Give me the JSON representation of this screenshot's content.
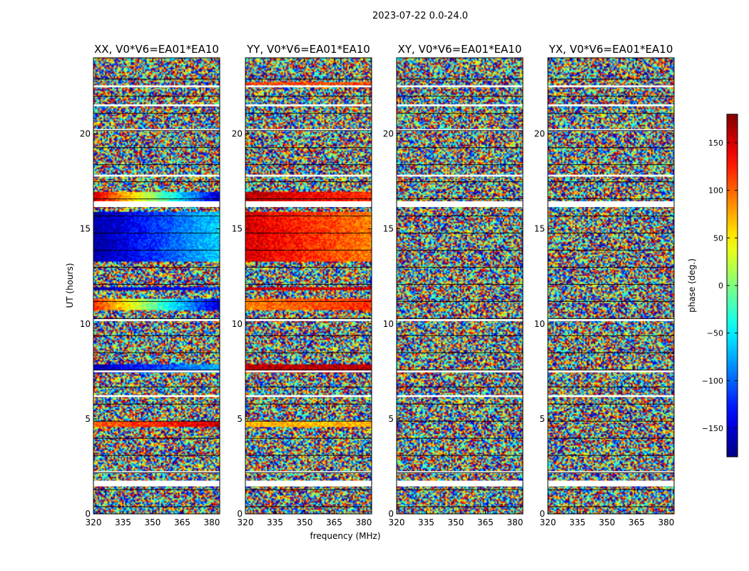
{
  "figure": {
    "suptitle": "2023-07-22 0.0-24.0",
    "xlabel": "frequency (MHz)",
    "ylabel": "UT (hours)",
    "colorbar_label": "phase (deg.)",
    "colorbar_ticks": [
      "150",
      "100",
      "50",
      "0",
      "−50",
      "−100",
      "−150"
    ],
    "x_ticks": [
      "320",
      "335",
      "350",
      "365",
      "380"
    ],
    "y_ticks": [
      "0",
      "5",
      "10",
      "15",
      "20"
    ]
  },
  "chart_data": [
    {
      "type": "heatmap",
      "title": "XX, V0*V6=EA01*EA10",
      "xlabel": "frequency (MHz)",
      "ylabel": "UT (hours)",
      "xlim": [
        320,
        384
      ],
      "ylim": [
        0,
        24
      ],
      "x_ticks": [
        320,
        335,
        350,
        365,
        380
      ],
      "y_ticks": [
        0,
        5,
        10,
        15,
        20
      ],
      "value_range": [
        -180,
        180
      ],
      "colormap": "jet",
      "flagged_bands": [
        [
          1.45,
          1.75
        ],
        [
          2.15,
          2.25
        ],
        [
          6.15,
          6.25
        ],
        [
          7.45,
          7.55
        ],
        [
          10.15,
          10.25
        ],
        [
          16.15,
          16.45
        ],
        [
          17.75,
          17.85
        ],
        [
          20.15,
          20.25
        ],
        [
          21.45,
          21.55
        ],
        [
          22.45,
          22.55
        ]
      ],
      "coherent_bands": [
        {
          "ut": [
            4.55,
            4.85
          ],
          "phase_start": 100,
          "phase_end": 150
        },
        {
          "ut": [
            7.45,
            7.85
          ],
          "phase_start": -160,
          "phase_end": -70
        },
        {
          "ut": [
            10.75,
            11.35
          ],
          "phase_start": 120,
          "phase_end": -150
        },
        {
          "ut": [
            11.75,
            11.95
          ],
          "phase_start": -160,
          "phase_end": -120
        },
        {
          "ut": [
            13.3,
            15.9
          ],
          "phase_start": -170,
          "phase_end": -60
        },
        {
          "ut": [
            16.45,
            16.95
          ],
          "phase_start": 150,
          "phase_end": -150
        }
      ]
    },
    {
      "type": "heatmap",
      "title": "YY, V0*V6=EA01*EA10",
      "xlabel": "frequency (MHz)",
      "ylabel": "UT (hours)",
      "xlim": [
        320,
        384
      ],
      "ylim": [
        0,
        24
      ],
      "x_ticks": [
        320,
        335,
        350,
        365,
        380
      ],
      "y_ticks": [
        0,
        5,
        10,
        15,
        20
      ],
      "value_range": [
        -180,
        180
      ],
      "colormap": "jet",
      "flagged_bands": [
        [
          1.45,
          1.75
        ],
        [
          2.15,
          2.25
        ],
        [
          6.15,
          6.25
        ],
        [
          7.45,
          7.55
        ],
        [
          10.15,
          10.25
        ],
        [
          16.15,
          16.45
        ],
        [
          17.75,
          17.85
        ],
        [
          20.15,
          20.25
        ],
        [
          21.45,
          21.55
        ],
        [
          22.45,
          22.55
        ]
      ],
      "coherent_bands": [
        {
          "ut": [
            4.55,
            4.85
          ],
          "phase_start": 70,
          "phase_end": 70
        },
        {
          "ut": [
            7.45,
            7.85
          ],
          "phase_start": 160,
          "phase_end": 160
        },
        {
          "ut": [
            10.75,
            11.35
          ],
          "phase_start": 90,
          "phase_end": 120
        },
        {
          "ut": [
            11.75,
            11.95
          ],
          "phase_start": 150,
          "phase_end": 150
        },
        {
          "ut": [
            13.3,
            15.9
          ],
          "phase_start": 150,
          "phase_end": 90
        },
        {
          "ut": [
            16.45,
            16.95
          ],
          "phase_start": 160,
          "phase_end": 120
        },
        {
          "ut": [
            22.55,
            22.75
          ],
          "phase_start": 110,
          "phase_end": 110
        }
      ]
    },
    {
      "type": "heatmap",
      "title": "XY, V0*V6=EA01*EA10",
      "xlabel": "frequency (MHz)",
      "ylabel": "UT (hours)",
      "xlim": [
        320,
        384
      ],
      "ylim": [
        0,
        24
      ],
      "x_ticks": [
        320,
        335,
        350,
        365,
        380
      ],
      "y_ticks": [
        0,
        5,
        10,
        15,
        20
      ],
      "value_range": [
        -180,
        180
      ],
      "colormap": "jet",
      "flagged_bands": [
        [
          1.45,
          1.75
        ],
        [
          2.15,
          2.25
        ],
        [
          6.15,
          6.25
        ],
        [
          7.45,
          7.55
        ],
        [
          10.15,
          10.25
        ],
        [
          16.15,
          16.45
        ],
        [
          17.75,
          17.85
        ],
        [
          20.15,
          20.25
        ],
        [
          21.45,
          21.55
        ],
        [
          22.45,
          22.55
        ]
      ],
      "coherent_bands": []
    },
    {
      "type": "heatmap",
      "title": "YX, V0*V6=EA01*EA10",
      "xlabel": "frequency (MHz)",
      "ylabel": "UT (hours)",
      "xlim": [
        320,
        384
      ],
      "ylim": [
        0,
        24
      ],
      "x_ticks": [
        320,
        335,
        350,
        365,
        380
      ],
      "y_ticks": [
        0,
        5,
        10,
        15,
        20
      ],
      "value_range": [
        -180,
        180
      ],
      "colormap": "jet",
      "flagged_bands": [
        [
          1.45,
          1.75
        ],
        [
          2.15,
          2.25
        ],
        [
          6.15,
          6.25
        ],
        [
          7.45,
          7.55
        ],
        [
          10.15,
          10.25
        ],
        [
          16.15,
          16.45
        ],
        [
          17.75,
          17.85
        ],
        [
          20.15,
          20.25
        ],
        [
          21.45,
          21.55
        ],
        [
          22.45,
          22.55
        ]
      ],
      "coherent_bands": []
    }
  ],
  "colorbar": {
    "range": [
      -180,
      180
    ],
    "ticks": [
      150,
      100,
      50,
      0,
      -50,
      -100,
      -150
    ],
    "colormap": "jet"
  }
}
